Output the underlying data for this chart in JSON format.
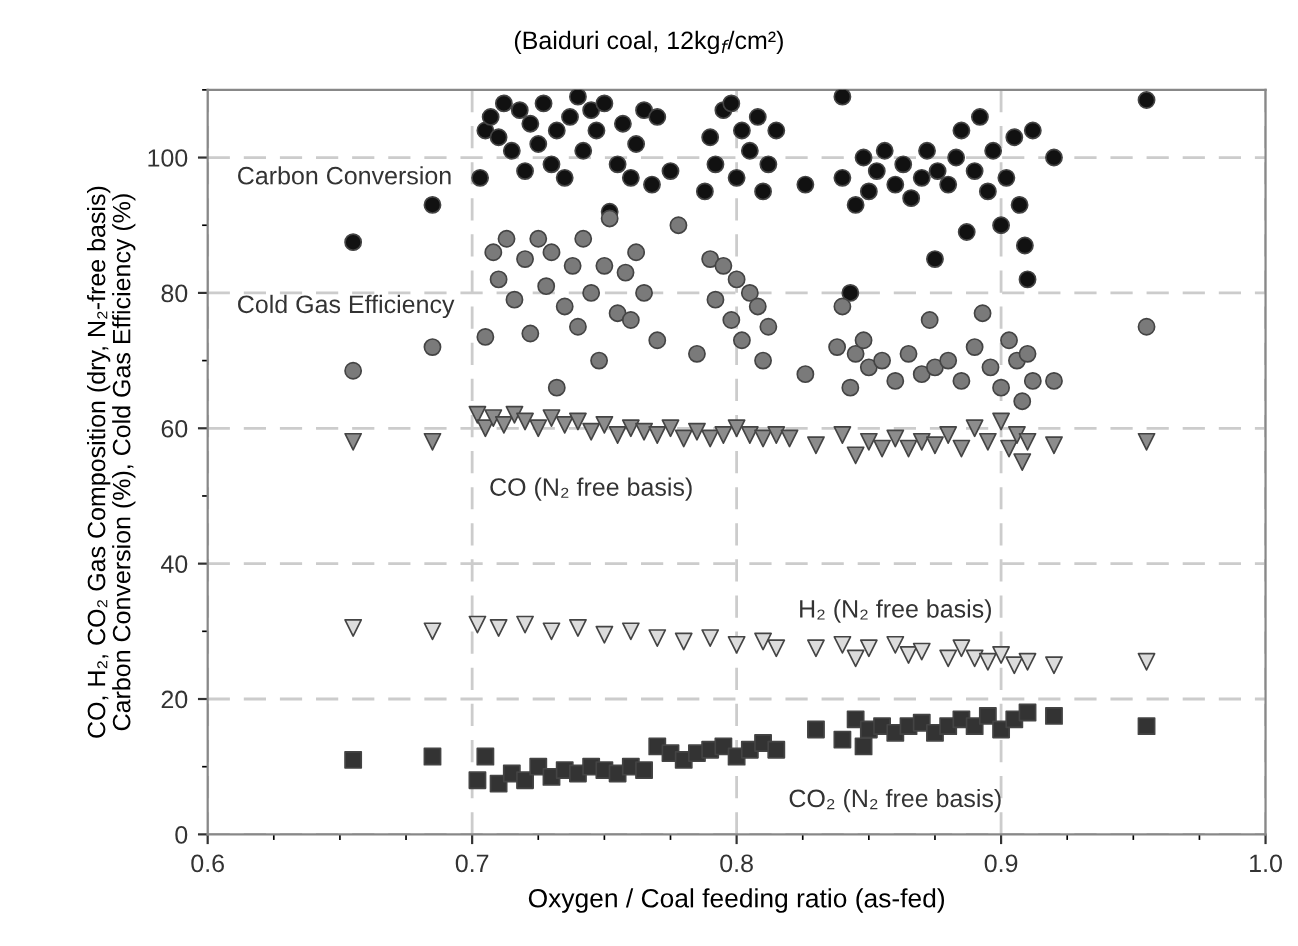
{
  "chart_data": {
    "type": "scatter",
    "title": "(Baiduri coal, 12kg$_{f}$/cm²)",
    "xlabel": "Oxygen / Coal feeding ratio (as-fed)",
    "ylabel": "CO, H₂, CO₂ Gas Composition (dry, N₂-free basis)\nCarbon Conversion (%), Cold Gas Efficiency (%)",
    "xlim": [
      0.6,
      1.0
    ],
    "xticks": [
      0.6,
      0.7,
      0.8,
      0.9,
      {
        "value": 1.0,
        "label": "1.0"
      }
    ],
    "ylim": [
      0,
      110
    ],
    "yticks": [
      0,
      20,
      40,
      60,
      80,
      100
    ],
    "grid": true,
    "series": [
      {
        "name": "Carbon Conversion",
        "color": "#111111",
        "marker": "circle",
        "x": [
          0.655,
          0.685,
          0.703,
          0.705,
          0.707,
          0.71,
          0.712,
          0.715,
          0.718,
          0.72,
          0.722,
          0.725,
          0.727,
          0.73,
          0.732,
          0.735,
          0.737,
          0.74,
          0.742,
          0.745,
          0.747,
          0.75,
          0.752,
          0.755,
          0.757,
          0.76,
          0.762,
          0.765,
          0.768,
          0.77,
          0.775,
          0.788,
          0.79,
          0.792,
          0.795,
          0.798,
          0.8,
          0.802,
          0.805,
          0.808,
          0.81,
          0.812,
          0.815,
          0.826,
          0.84,
          0.84,
          0.843,
          0.845,
          0.848,
          0.85,
          0.853,
          0.856,
          0.86,
          0.863,
          0.866,
          0.87,
          0.872,
          0.875,
          0.876,
          0.88,
          0.883,
          0.885,
          0.887,
          0.89,
          0.892,
          0.895,
          0.897,
          0.9,
          0.902,
          0.905,
          0.907,
          0.909,
          0.91,
          0.912,
          0.92,
          0.955
        ],
        "values": [
          87.5,
          93,
          97,
          104,
          106,
          103,
          108,
          101,
          107,
          98,
          105,
          102,
          108,
          99,
          104,
          97,
          106,
          109,
          101,
          107,
          104,
          108,
          92,
          99,
          105,
          97,
          102,
          107,
          96,
          106,
          98,
          95,
          103,
          99,
          107,
          108,
          97,
          104,
          101,
          106,
          95,
          99,
          104,
          96,
          109,
          97,
          80,
          93,
          100,
          95,
          98,
          101,
          96,
          99,
          94,
          97,
          101,
          85,
          98,
          96,
          100,
          104,
          89,
          98,
          106,
          95,
          101,
          90,
          97,
          103,
          93,
          87,
          82,
          104,
          100,
          108.5
        ]
      },
      {
        "name": "Cold Gas Efficiency",
        "color": "#7a7a7a",
        "marker": "circle",
        "x": [
          0.655,
          0.685,
          0.705,
          0.708,
          0.71,
          0.713,
          0.716,
          0.72,
          0.722,
          0.725,
          0.728,
          0.73,
          0.732,
          0.735,
          0.738,
          0.74,
          0.742,
          0.745,
          0.748,
          0.75,
          0.752,
          0.755,
          0.758,
          0.76,
          0.762,
          0.765,
          0.77,
          0.778,
          0.785,
          0.79,
          0.792,
          0.795,
          0.798,
          0.8,
          0.802,
          0.805,
          0.808,
          0.81,
          0.812,
          0.826,
          0.838,
          0.84,
          0.843,
          0.845,
          0.848,
          0.85,
          0.855,
          0.86,
          0.865,
          0.87,
          0.873,
          0.875,
          0.88,
          0.885,
          0.89,
          0.893,
          0.896,
          0.9,
          0.903,
          0.906,
          0.908,
          0.91,
          0.912,
          0.92,
          0.955
        ],
        "values": [
          68.5,
          72,
          73.5,
          86,
          82,
          88,
          79,
          85,
          74,
          88,
          81,
          86,
          66,
          78,
          84,
          75,
          88,
          80,
          70,
          84,
          91,
          77,
          83,
          76,
          86,
          80,
          73,
          90,
          71,
          85,
          79,
          84,
          76,
          82,
          73,
          80,
          78,
          70,
          75,
          68,
          72,
          78,
          66,
          71,
          73,
          69,
          70,
          67,
          71,
          68,
          76,
          69,
          70,
          67,
          72,
          77,
          69,
          66,
          73,
          70,
          64,
          71,
          67,
          67,
          75
        ]
      },
      {
        "name": "CO (N₂ free basis)",
        "color": "#8c8c8c",
        "marker": "triangle",
        "x": [
          0.655,
          0.685,
          0.702,
          0.705,
          0.708,
          0.712,
          0.716,
          0.72,
          0.725,
          0.73,
          0.735,
          0.74,
          0.745,
          0.75,
          0.755,
          0.76,
          0.765,
          0.77,
          0.775,
          0.78,
          0.785,
          0.79,
          0.795,
          0.8,
          0.805,
          0.81,
          0.815,
          0.82,
          0.83,
          0.84,
          0.845,
          0.85,
          0.855,
          0.86,
          0.865,
          0.87,
          0.875,
          0.88,
          0.885,
          0.89,
          0.895,
          0.9,
          0.903,
          0.906,
          0.908,
          0.91,
          0.92,
          0.955
        ],
        "values": [
          58,
          58,
          62,
          60,
          61.5,
          60.5,
          62,
          61,
          60,
          61.5,
          60.5,
          61,
          59.5,
          60.5,
          59,
          60,
          59.5,
          59,
          60,
          58.5,
          59.5,
          58.5,
          59,
          60,
          59,
          58.5,
          59,
          58.5,
          57.5,
          59,
          56,
          58,
          57,
          58.5,
          57,
          58,
          57.5,
          59,
          57,
          60,
          58,
          61,
          57,
          59,
          55,
          58,
          57.5,
          58
        ]
      },
      {
        "name": "H₂ (N₂ free basis)",
        "color": "#dcdcdc",
        "marker": "triangle",
        "x": [
          0.655,
          0.685,
          0.702,
          0.71,
          0.72,
          0.73,
          0.74,
          0.75,
          0.76,
          0.77,
          0.78,
          0.79,
          0.8,
          0.81,
          0.815,
          0.83,
          0.84,
          0.845,
          0.85,
          0.86,
          0.865,
          0.87,
          0.88,
          0.885,
          0.89,
          0.895,
          0.9,
          0.905,
          0.91,
          0.92,
          0.955
        ],
        "values": [
          30.5,
          30,
          31,
          30.5,
          31,
          30,
          30.5,
          29.5,
          30,
          29,
          28.5,
          29,
          28,
          28.5,
          27.5,
          27.5,
          28,
          26,
          27.5,
          28,
          26.5,
          27,
          26,
          27.5,
          26,
          25.5,
          26.5,
          25,
          25.5,
          25,
          25.5
        ]
      },
      {
        "name": "CO₂ (N₂ free basis)",
        "color": "#333333",
        "marker": "square",
        "x": [
          0.655,
          0.685,
          0.702,
          0.705,
          0.71,
          0.715,
          0.72,
          0.725,
          0.73,
          0.735,
          0.74,
          0.745,
          0.75,
          0.755,
          0.76,
          0.765,
          0.77,
          0.775,
          0.78,
          0.785,
          0.79,
          0.795,
          0.8,
          0.805,
          0.81,
          0.815,
          0.83,
          0.84,
          0.845,
          0.848,
          0.85,
          0.855,
          0.86,
          0.865,
          0.87,
          0.875,
          0.88,
          0.885,
          0.89,
          0.895,
          0.9,
          0.905,
          0.91,
          0.92,
          0.955
        ],
        "values": [
          11,
          11.5,
          8,
          11.5,
          7.5,
          9,
          8,
          10,
          8.5,
          9.5,
          9,
          10,
          9.5,
          9,
          10,
          9.5,
          13,
          12,
          11,
          12,
          12.5,
          13,
          11.5,
          12.5,
          13.5,
          12.5,
          15.5,
          14,
          17,
          13,
          15.5,
          16,
          15,
          16,
          16.5,
          15,
          16,
          17,
          16,
          17.5,
          15.5,
          17,
          18,
          17.5,
          16
        ]
      }
    ]
  }
}
